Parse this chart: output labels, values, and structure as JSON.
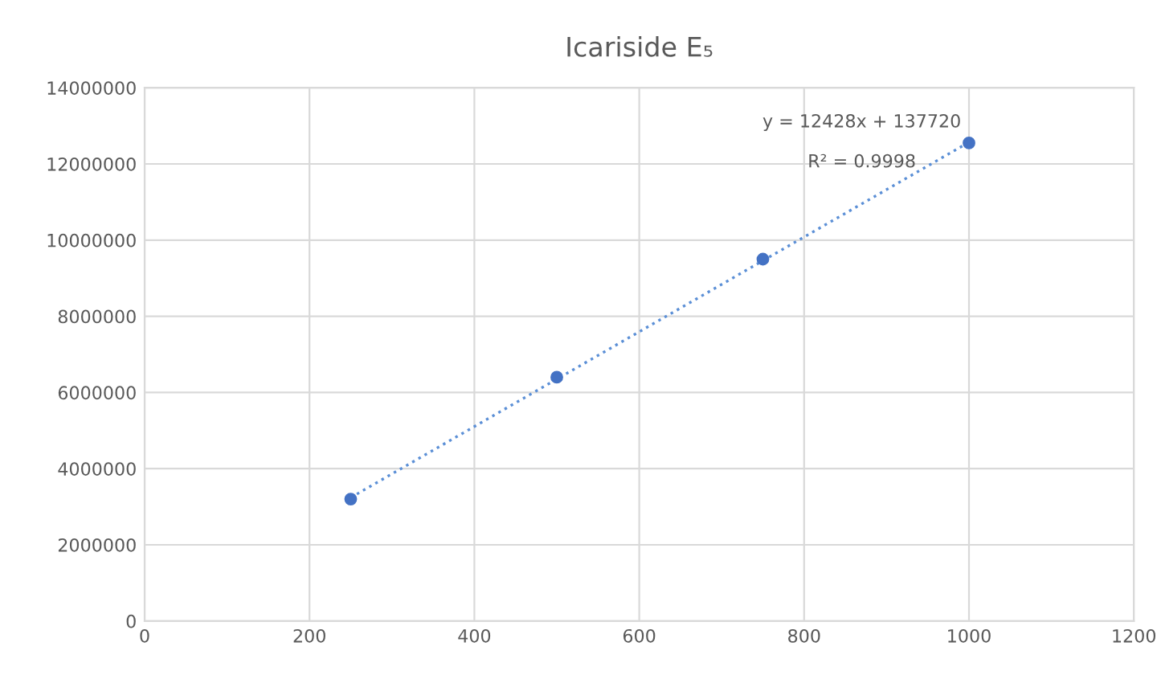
{
  "chart_data": {
    "type": "scatter",
    "title": "Icariside E₅",
    "x": [
      250,
      500,
      750,
      1000
    ],
    "series": [
      {
        "color": "#4472c4",
        "values": [
          3200000,
          6400000,
          9500000,
          12550000
        ],
        "marker": "circle"
      },
      {
        "type": "line",
        "color": "#5b8fd6",
        "x": [
          250,
          1000
        ],
        "values": [
          3240000,
          12570000
        ],
        "line_style": "dotted",
        "marker": "none"
      }
    ],
    "annotations": [
      "y = 12428x + 137720",
      "R² = 0.9998"
    ],
    "xlim": [
      0,
      1200
    ],
    "xticks": [
      0,
      200,
      400,
      600,
      800,
      1000,
      1200
    ],
    "ylim": [
      0,
      14000000
    ],
    "yticks": [
      0,
      2000000,
      4000000,
      6000000,
      8000000,
      10000000,
      12000000,
      14000000
    ],
    "grid": true,
    "legend": false
  }
}
